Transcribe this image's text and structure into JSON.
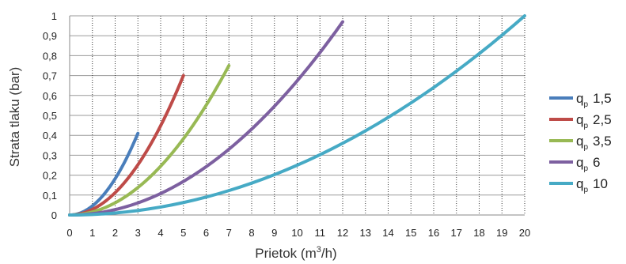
{
  "chart_data": {
    "type": "line",
    "xlabel": "Prietok",
    "xlabel_unit_prefix": "(m",
    "xlabel_unit_exp": "3",
    "xlabel_unit_suffix": "/h)",
    "ylabel": "Strata tlaku (bar)",
    "xlim": [
      0,
      20
    ],
    "ylim": [
      0,
      1
    ],
    "x_ticks": [
      "0",
      "1",
      "2",
      "3",
      "4",
      "5",
      "6",
      "7",
      "8",
      "9",
      "10",
      "11",
      "12",
      "13",
      "14",
      "15",
      "16",
      "17",
      "18",
      "19",
      "20"
    ],
    "y_ticks": [
      "0",
      "0,1",
      "0,2",
      "0,3",
      "0,4",
      "0,5",
      "0,6",
      "0,7",
      "0,8",
      "0,9",
      "1"
    ],
    "grid": "vertical dotted at every x, horizontal solid at every 0.1",
    "legend_position": "right",
    "series": [
      {
        "name_main": "q",
        "name_sub": "p",
        "name_value": "1,5",
        "color": "#4a7ebb",
        "x_max": 3,
        "y_max": 0.41
      },
      {
        "name_main": "q",
        "name_sub": "p",
        "name_value": "2,5",
        "color": "#be4b48",
        "x_max": 5,
        "y_max": 0.7
      },
      {
        "name_main": "q",
        "name_sub": "p",
        "name_value": "3,5",
        "color": "#98b954",
        "x_max": 7,
        "y_max": 0.75
      },
      {
        "name_main": "q",
        "name_sub": "p",
        "name_value": "6",
        "color": "#7d60a0",
        "x_max": 12,
        "y_max": 0.97
      },
      {
        "name_main": "q",
        "name_sub": "p",
        "name_value": "10",
        "color": "#46aac5",
        "x_max": 20,
        "y_max": 1.0
      }
    ]
  }
}
